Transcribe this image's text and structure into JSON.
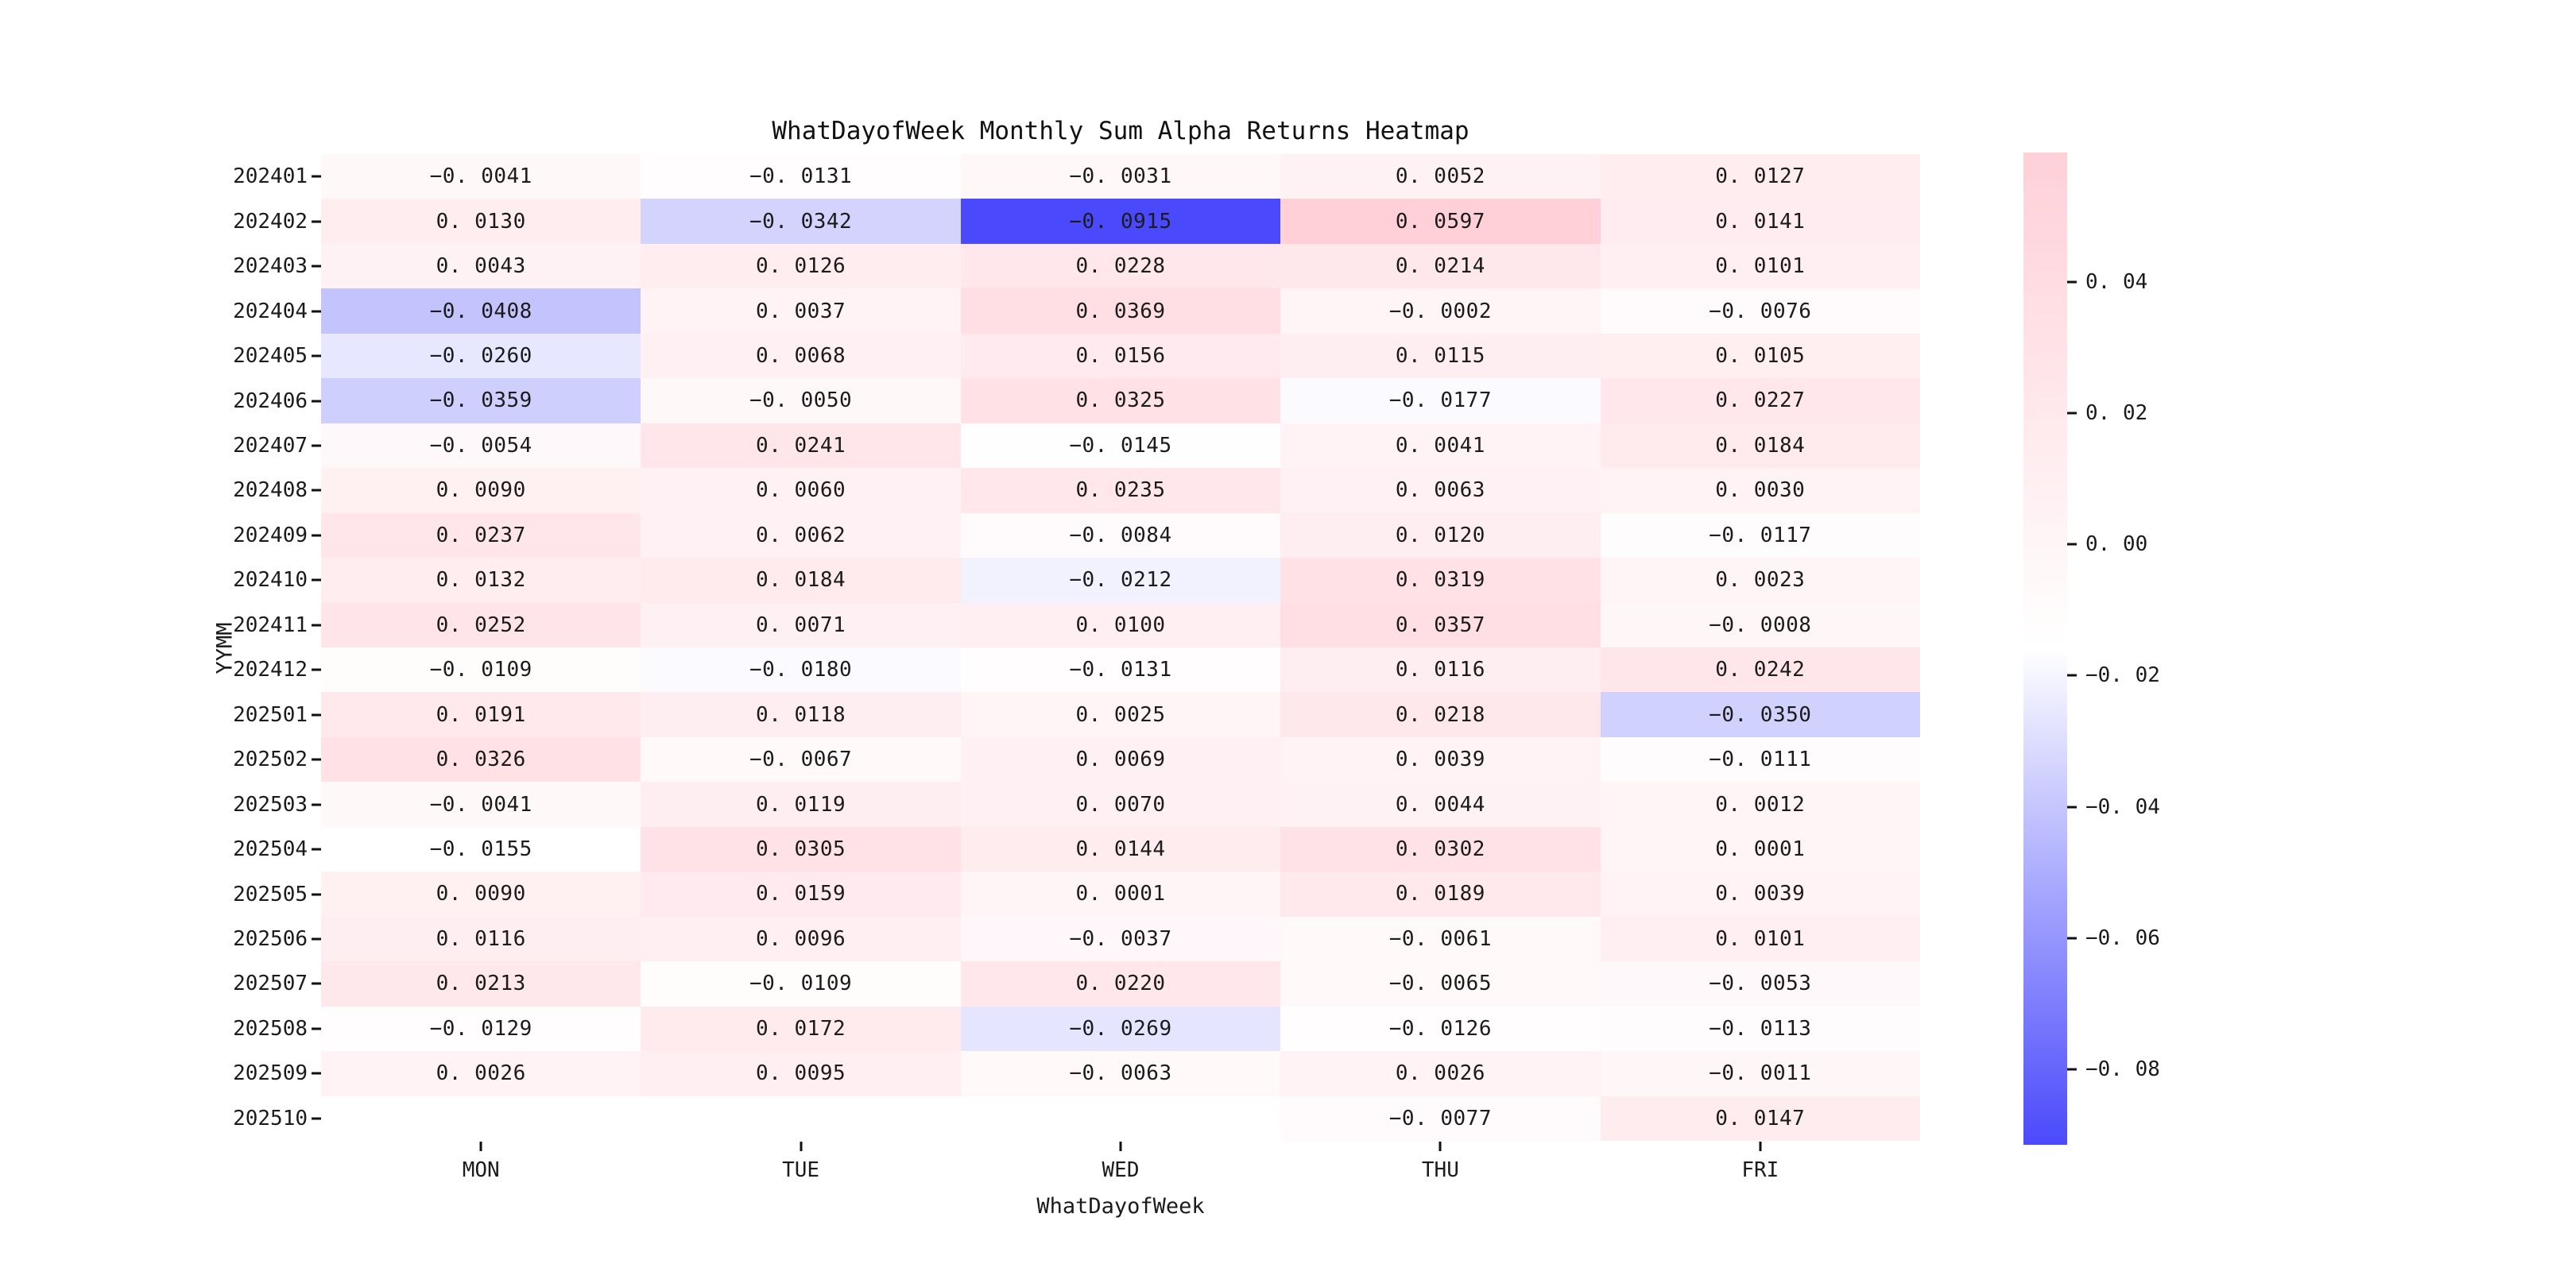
{
  "chart_data": {
    "type": "heatmap",
    "title": "WhatDayofWeek Monthly Sum Alpha Returns Heatmap",
    "xlabel": "WhatDayofWeek",
    "ylabel": "YYMM",
    "columns": [
      "MON",
      "TUE",
      "WED",
      "THU",
      "FRI"
    ],
    "rows": [
      "202401",
      "202402",
      "202403",
      "202404",
      "202405",
      "202406",
      "202407",
      "202408",
      "202409",
      "202410",
      "202411",
      "202412",
      "202501",
      "202502",
      "202503",
      "202504",
      "202505",
      "202506",
      "202507",
      "202508",
      "202509",
      "202510"
    ],
    "values": [
      [
        -0.0041,
        -0.0131,
        -0.0031,
        0.0052,
        0.0127
      ],
      [
        0.013,
        -0.0342,
        -0.0915,
        0.0597,
        0.0141
      ],
      [
        0.0043,
        0.0126,
        0.0228,
        0.0214,
        0.0101
      ],
      [
        -0.0408,
        0.0037,
        0.0369,
        -0.0002,
        -0.0076
      ],
      [
        -0.026,
        0.0068,
        0.0156,
        0.0115,
        0.0105
      ],
      [
        -0.0359,
        -0.005,
        0.0325,
        -0.0177,
        0.0227
      ],
      [
        -0.0054,
        0.0241,
        -0.0145,
        0.0041,
        0.0184
      ],
      [
        0.009,
        0.006,
        0.0235,
        0.0063,
        0.003
      ],
      [
        0.0237,
        0.0062,
        -0.0084,
        0.012,
        -0.0117
      ],
      [
        0.0132,
        0.0184,
        -0.0212,
        0.0319,
        0.0023
      ],
      [
        0.0252,
        0.0071,
        0.01,
        0.0357,
        -0.0008
      ],
      [
        -0.0109,
        -0.018,
        -0.0131,
        0.0116,
        0.0242
      ],
      [
        0.0191,
        0.0118,
        0.0025,
        0.0218,
        -0.035
      ],
      [
        0.0326,
        -0.0067,
        0.0069,
        0.0039,
        -0.0111
      ],
      [
        -0.0041,
        0.0119,
        0.007,
        0.0044,
        0.0012
      ],
      [
        -0.0155,
        0.0305,
        0.0144,
        0.0302,
        0.0001
      ],
      [
        0.009,
        0.0159,
        0.0001,
        0.0189,
        0.0039
      ],
      [
        0.0116,
        0.0096,
        -0.0037,
        -0.0061,
        0.0101
      ],
      [
        0.0213,
        -0.0109,
        0.022,
        -0.0065,
        -0.0053
      ],
      [
        -0.0129,
        0.0172,
        -0.0269,
        -0.0126,
        -0.0113
      ],
      [
        0.0026,
        0.0095,
        -0.0063,
        0.0026,
        -0.0011
      ],
      [
        null,
        null,
        null,
        -0.0077,
        0.0147
      ]
    ],
    "value_decimals": 4,
    "colormap": {
      "vmin": -0.0915,
      "vmax": 0.0597,
      "color_low": "#4A4AFC",
      "color_mid": "#FFFFFF",
      "color_high": "#FFD0D8"
    },
    "colorbar": {
      "ticks": [
        0.04,
        0.02,
        0.0,
        -0.02,
        -0.04,
        -0.06,
        -0.08
      ],
      "tick_decimals": 2,
      "position": "right"
    },
    "grid": false,
    "annotated": true
  }
}
